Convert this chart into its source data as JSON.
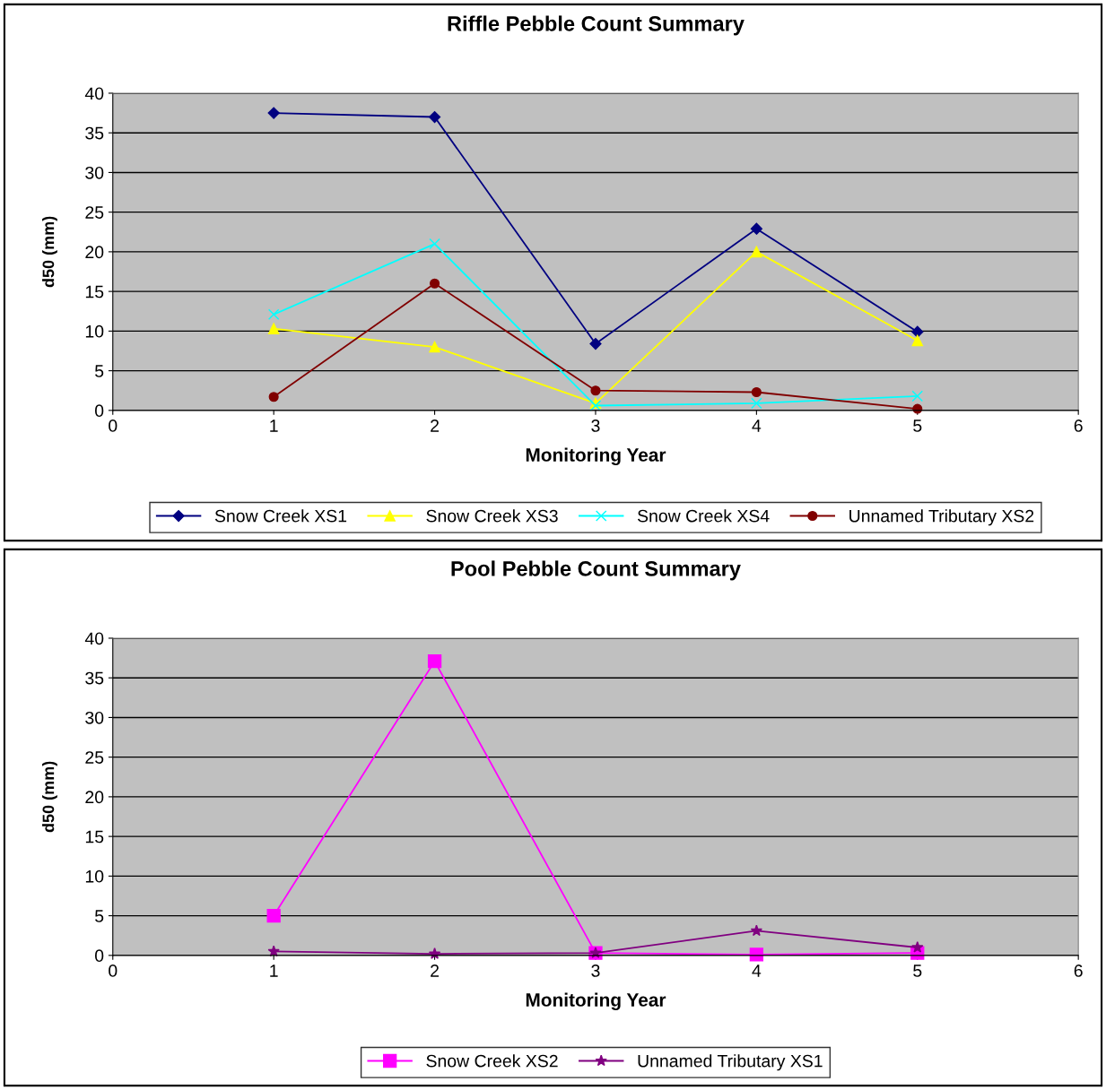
{
  "chart_data": [
    {
      "type": "line",
      "title": "Riffle Pebble Count Summary",
      "xlabel": "Monitoring Year",
      "ylabel": "d50 (mm)",
      "x": [
        1,
        2,
        3,
        4,
        5
      ],
      "xlim": [
        0,
        6
      ],
      "xticks": [
        0,
        1,
        2,
        3,
        4,
        5,
        6
      ],
      "ylim": [
        0,
        40
      ],
      "yticks": [
        0,
        5,
        10,
        15,
        20,
        25,
        30,
        35,
        40
      ],
      "grid": "y",
      "legend": "bottom",
      "series": [
        {
          "name": "Snow Creek XS1",
          "color": "#000080",
          "marker": "diamond",
          "values": [
            37.5,
            37.0,
            8.4,
            22.9,
            9.9
          ]
        },
        {
          "name": "Snow Creek XS3",
          "color": "#ffff00",
          "marker": "triangle",
          "values": [
            10.3,
            8.0,
            0.9,
            20.0,
            8.8
          ]
        },
        {
          "name": "Snow Creek XS4",
          "color": "#00ffff",
          "marker": "cross",
          "values": [
            12.1,
            21.0,
            0.6,
            0.9,
            1.8
          ]
        },
        {
          "name": "Unnamed Tributary XS2",
          "color": "#800000",
          "marker": "circle",
          "values": [
            1.7,
            16.0,
            2.5,
            2.3,
            0.2
          ]
        }
      ]
    },
    {
      "type": "line",
      "title": "Pool Pebble Count Summary",
      "xlabel": "Monitoring Year",
      "ylabel": "d50 (mm)",
      "x": [
        1,
        2,
        3,
        4,
        5
      ],
      "xlim": [
        0,
        6
      ],
      "xticks": [
        0,
        1,
        2,
        3,
        4,
        5,
        6
      ],
      "ylim": [
        0,
        40
      ],
      "yticks": [
        0,
        5,
        10,
        15,
        20,
        25,
        30,
        35,
        40
      ],
      "grid": "y",
      "legend": "bottom",
      "series": [
        {
          "name": "Snow Creek XS2",
          "color": "#ff00ff",
          "marker": "square",
          "values": [
            5.0,
            37.1,
            0.3,
            0.1,
            0.3
          ]
        },
        {
          "name": "Unnamed Tributary XS1",
          "color": "#800080",
          "marker": "star",
          "values": [
            0.5,
            0.2,
            0.3,
            3.1,
            1.0
          ]
        }
      ]
    }
  ]
}
